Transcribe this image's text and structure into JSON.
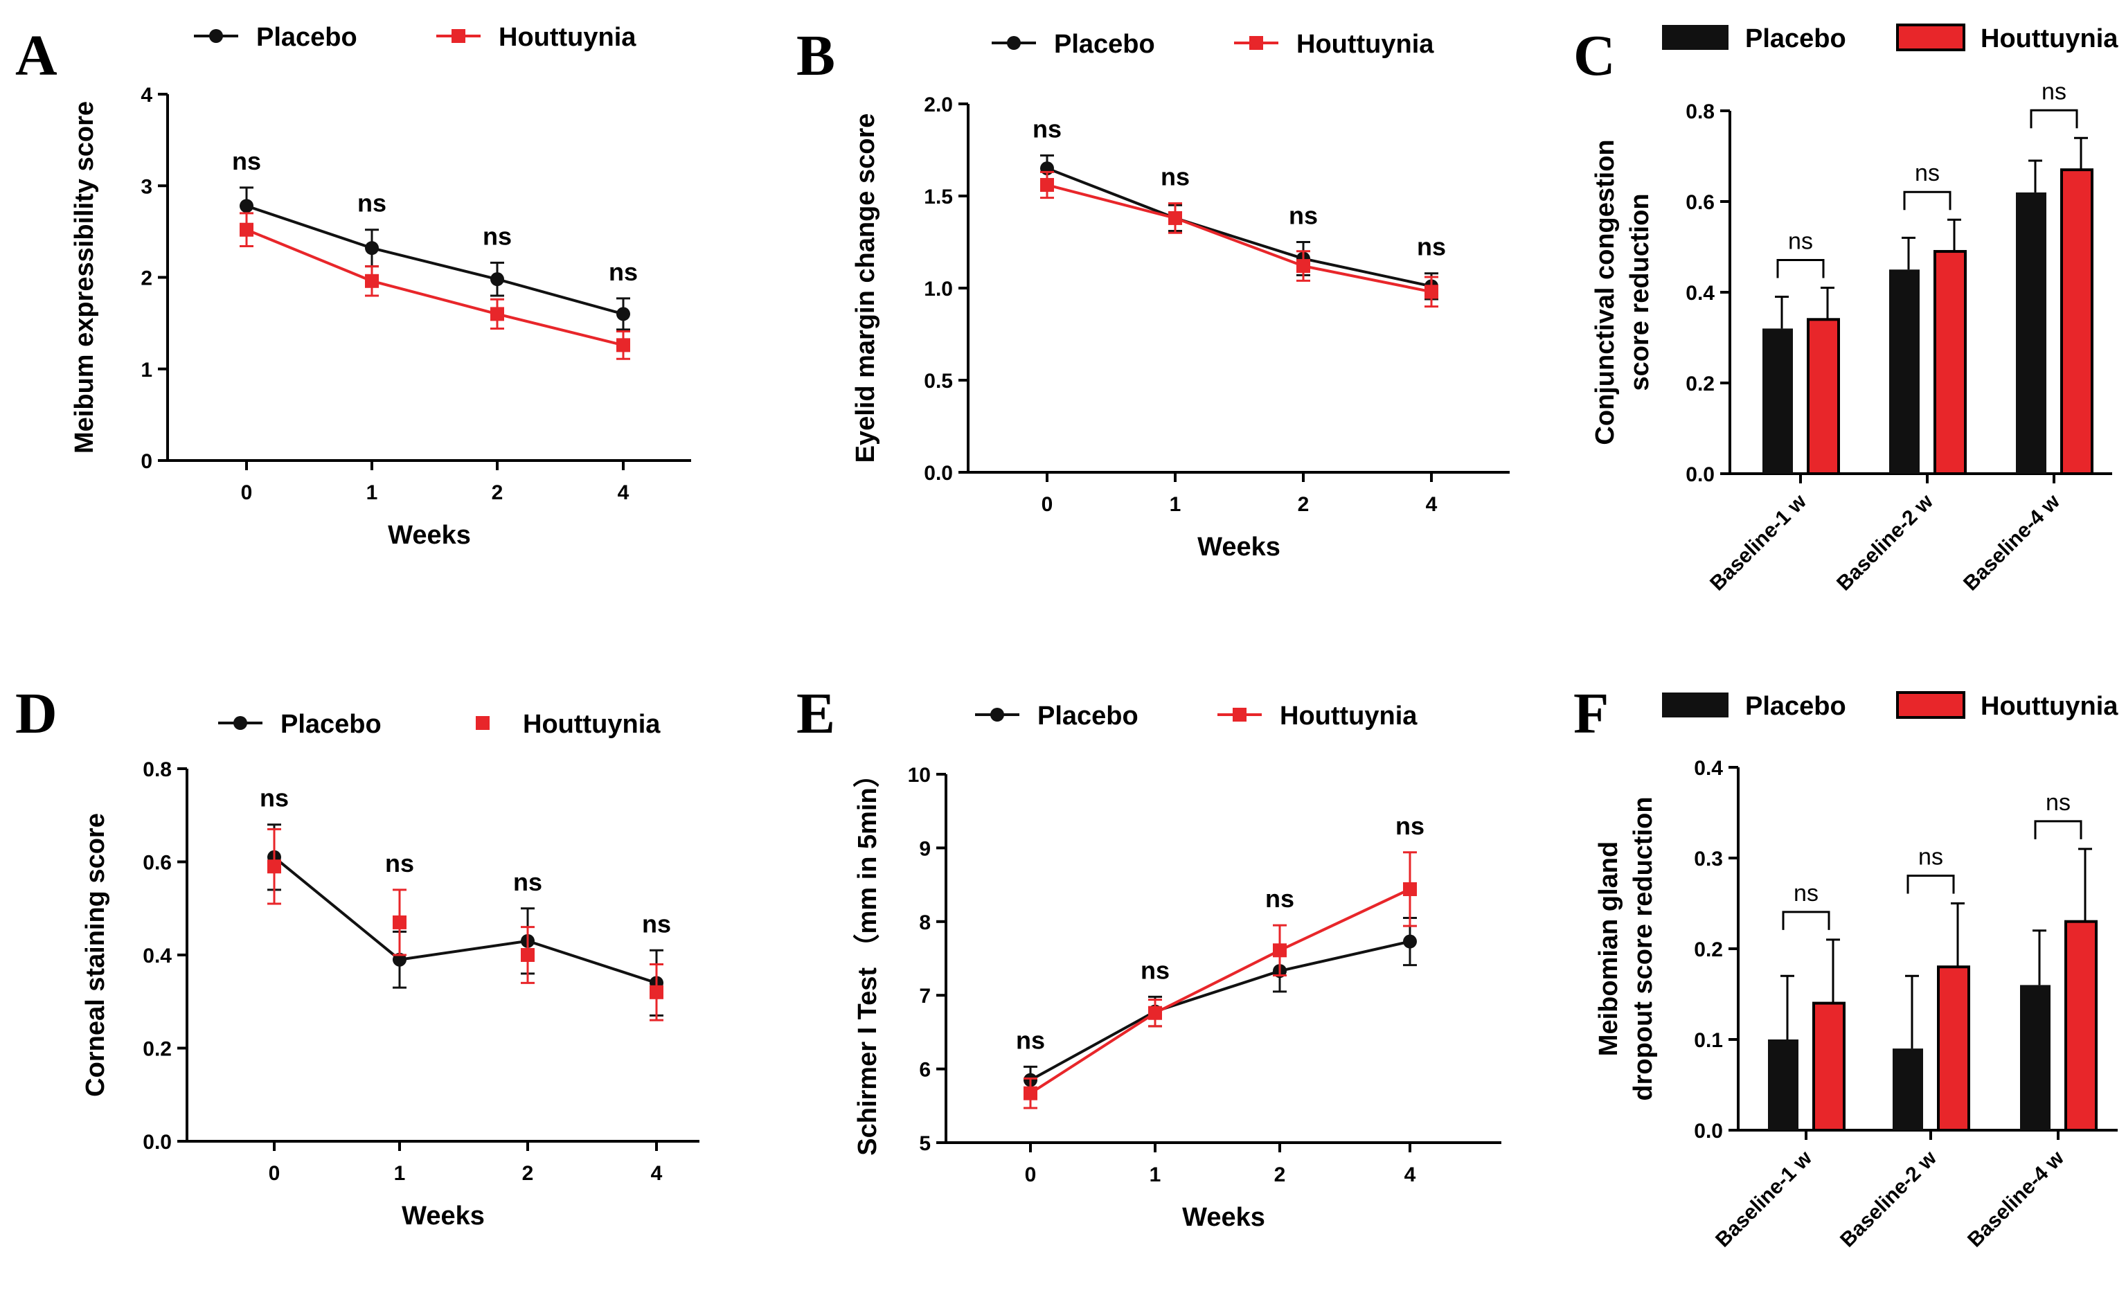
{
  "figure": {
    "colors": {
      "placebo": "#111111",
      "houttuynia": "#e8262a"
    }
  },
  "chart_data": [
    {
      "panel": "A",
      "type": "line",
      "title": "",
      "xlabel": "Weeks",
      "ylabel": "Meibum expressibility score",
      "categories": [
        "0",
        "1",
        "2",
        "4"
      ],
      "ylim": [
        0,
        4
      ],
      "yticks": [
        "0",
        "1",
        "2",
        "3",
        "4"
      ],
      "legend": [
        "Placebo",
        "Houttuynia"
      ],
      "significance": [
        "ns",
        "ns",
        "ns",
        "ns"
      ],
      "series": [
        {
          "name": "Placebo",
          "values": [
            2.78,
            2.32,
            1.98,
            1.6
          ],
          "errors": [
            0.2,
            0.2,
            0.18,
            0.17
          ]
        },
        {
          "name": "Houttuynia",
          "values": [
            2.52,
            1.96,
            1.6,
            1.26
          ],
          "errors": [
            0.18,
            0.16,
            0.16,
            0.15
          ]
        }
      ]
    },
    {
      "panel": "B",
      "type": "line",
      "title": "",
      "xlabel": "Weeks",
      "ylabel": "Eyelid margin change score",
      "categories": [
        "0",
        "1",
        "2",
        "4"
      ],
      "ylim": [
        0,
        2
      ],
      "yticks": [
        "0.0",
        "0.5",
        "1.0",
        "1.5",
        "2.0"
      ],
      "legend": [
        "Placebo",
        "Houttuynia"
      ],
      "significance": [
        "ns",
        "ns",
        "ns",
        "ns"
      ],
      "series": [
        {
          "name": "Placebo",
          "values": [
            1.65,
            1.38,
            1.16,
            1.01
          ],
          "errors": [
            0.07,
            0.07,
            0.09,
            0.07
          ]
        },
        {
          "name": "Houttuynia",
          "values": [
            1.56,
            1.38,
            1.12,
            0.98
          ],
          "errors": [
            0.07,
            0.08,
            0.08,
            0.08
          ]
        }
      ]
    },
    {
      "panel": "C",
      "type": "bar",
      "title": "",
      "xlabel": "",
      "ylabel": "Conjunctival congestion score reduction",
      "ylabel_lines": [
        "Conjunctival congestion",
        "score reduction"
      ],
      "categories": [
        "Baseline-1 w",
        "Baseline-2 w",
        "Baseline-4 w"
      ],
      "ylim": [
        0,
        0.8
      ],
      "yticks": [
        "0.0",
        "0.2",
        "0.4",
        "0.6",
        "0.8"
      ],
      "legend": [
        "Placebo",
        "Houttuynia"
      ],
      "significance": [
        "ns",
        "ns",
        "ns"
      ],
      "series": [
        {
          "name": "Placebo",
          "values": [
            0.32,
            0.45,
            0.62
          ],
          "errors": [
            0.07,
            0.07,
            0.07
          ]
        },
        {
          "name": "Houttuynia",
          "values": [
            0.34,
            0.49,
            0.67
          ],
          "errors": [
            0.07,
            0.07,
            0.07
          ]
        }
      ]
    },
    {
      "panel": "D",
      "type": "line",
      "title": "",
      "xlabel": "Weeks",
      "ylabel": "Corneal staining score",
      "categories": [
        "0",
        "1",
        "2",
        "4"
      ],
      "ylim": [
        0,
        0.8
      ],
      "yticks": [
        "0.0",
        "0.2",
        "0.4",
        "0.6",
        "0.8"
      ],
      "legend": [
        "Placebo",
        "Houttuynia"
      ],
      "legend_style": "placebo-line-houttuynia-marker",
      "houttuynia_line": false,
      "significance": [
        "ns",
        "ns",
        "ns",
        "ns"
      ],
      "series": [
        {
          "name": "Placebo",
          "values": [
            0.61,
            0.39,
            0.43,
            0.34
          ],
          "errors": [
            0.07,
            0.06,
            0.07,
            0.07
          ]
        },
        {
          "name": "Houttuynia",
          "values": [
            0.59,
            0.47,
            0.4,
            0.32
          ],
          "errors": [
            0.08,
            0.07,
            0.06,
            0.06
          ]
        }
      ]
    },
    {
      "panel": "E",
      "type": "line",
      "title": "",
      "xlabel": "Weeks",
      "ylabel": "Schirmer I Test （mm in 5min）",
      "categories": [
        "0",
        "1",
        "2",
        "4"
      ],
      "ylim": [
        5,
        10
      ],
      "yticks": [
        "5",
        "6",
        "7",
        "8",
        "9",
        "10"
      ],
      "legend": [
        "Placebo",
        "Houttuynia"
      ],
      "significance": [
        "ns",
        "ns",
        "ns",
        "ns"
      ],
      "series": [
        {
          "name": "Placebo",
          "values": [
            5.85,
            6.78,
            7.33,
            7.73
          ],
          "errors": [
            0.18,
            0.2,
            0.28,
            0.32
          ]
        },
        {
          "name": "Houttuynia",
          "values": [
            5.67,
            6.76,
            7.61,
            8.44
          ],
          "errors": [
            0.2,
            0.18,
            0.34,
            0.5
          ]
        }
      ]
    },
    {
      "panel": "F",
      "type": "bar",
      "title": "",
      "xlabel": "",
      "ylabel": "Meibomian gland dropout score reduction",
      "ylabel_lines": [
        "Meibomian gland",
        "dropout score reduction"
      ],
      "categories": [
        "Baseline-1 w",
        "Baseline-2 w",
        "Baseline-4 w"
      ],
      "ylim": [
        0,
        0.4
      ],
      "yticks": [
        "0.0",
        "0.1",
        "0.2",
        "0.3",
        "0.4"
      ],
      "legend": [
        "Placebo",
        "Houttuynia"
      ],
      "significance": [
        "ns",
        "ns",
        "ns"
      ],
      "series": [
        {
          "name": "Placebo",
          "values": [
            0.1,
            0.09,
            0.16
          ],
          "errors": [
            0.07,
            0.08,
            0.06
          ]
        },
        {
          "name": "Houttuynia",
          "values": [
            0.14,
            0.18,
            0.23
          ],
          "errors": [
            0.07,
            0.07,
            0.08
          ]
        }
      ]
    }
  ]
}
